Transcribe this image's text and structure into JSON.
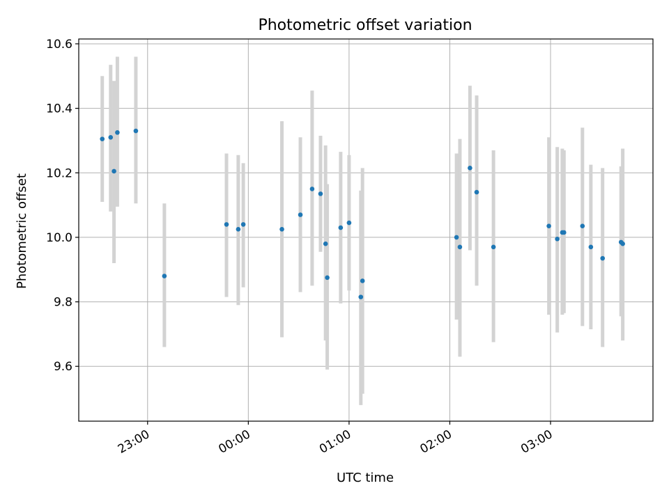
{
  "chart_data": {
    "type": "scatter",
    "title": "Photometric offset variation",
    "xlabel": "UTC time",
    "ylabel": "Photometric offset",
    "x_ticks": [
      "23:00",
      "00:00",
      "01:00",
      "02:00",
      "03:00"
    ],
    "y_ticks": [
      "9.6",
      "9.8",
      "10.0",
      "10.2",
      "10.4",
      "10.6"
    ],
    "xlim": [
      "22:19",
      "04:01"
    ],
    "ylim": [
      9.43,
      10.615
    ],
    "grid": true,
    "colors": {
      "marker": "#1f77b4",
      "errorbar": "#d3d3d3"
    },
    "series": [
      {
        "points": [
          {
            "x": "22:33",
            "y": 10.305,
            "ylo": 10.11,
            "yhi": 10.5
          },
          {
            "x": "22:38",
            "y": 10.31,
            "ylo": 10.08,
            "yhi": 10.535
          },
          {
            "x": "22:40",
            "y": 10.205,
            "ylo": 9.92,
            "yhi": 10.485
          },
          {
            "x": "22:42",
            "y": 10.325,
            "ylo": 10.095,
            "yhi": 10.56
          },
          {
            "x": "22:53",
            "y": 10.33,
            "ylo": 10.105,
            "yhi": 10.56
          },
          {
            "x": "23:10",
            "y": 9.88,
            "ylo": 9.66,
            "yhi": 10.105
          },
          {
            "x": "23:47",
            "y": 10.04,
            "ylo": 9.815,
            "yhi": 10.26
          },
          {
            "x": "23:54",
            "y": 10.025,
            "ylo": 9.79,
            "yhi": 10.255
          },
          {
            "x": "23:57",
            "y": 10.04,
            "ylo": 9.845,
            "yhi": 10.23
          },
          {
            "x": "00:20",
            "y": 10.025,
            "ylo": 9.69,
            "yhi": 10.36
          },
          {
            "x": "00:31",
            "y": 10.07,
            "ylo": 9.83,
            "yhi": 10.31
          },
          {
            "x": "00:38",
            "y": 10.15,
            "ylo": 9.85,
            "yhi": 10.455
          },
          {
            "x": "00:43",
            "y": 10.135,
            "ylo": 9.955,
            "yhi": 10.315
          },
          {
            "x": "00:46",
            "y": 9.98,
            "ylo": 9.68,
            "yhi": 10.285
          },
          {
            "x": "00:47",
            "y": 9.875,
            "ylo": 9.59,
            "yhi": 10.165
          },
          {
            "x": "00:55",
            "y": 10.03,
            "ylo": 9.795,
            "yhi": 10.265
          },
          {
            "x": "01:00",
            "y": 10.045,
            "ylo": 9.835,
            "yhi": 10.255
          },
          {
            "x": "01:07",
            "y": 9.815,
            "ylo": 9.48,
            "yhi": 10.145
          },
          {
            "x": "01:08",
            "y": 9.865,
            "ylo": 9.515,
            "yhi": 10.215
          },
          {
            "x": "02:04",
            "y": 10.0,
            "ylo": 9.745,
            "yhi": 10.26
          },
          {
            "x": "02:06",
            "y": 9.97,
            "ylo": 9.63,
            "yhi": 10.305
          },
          {
            "x": "02:12",
            "y": 10.215,
            "ylo": 9.96,
            "yhi": 10.47
          },
          {
            "x": "02:16",
            "y": 10.14,
            "ylo": 9.85,
            "yhi": 10.44
          },
          {
            "x": "02:26",
            "y": 9.97,
            "ylo": 9.675,
            "yhi": 10.27
          },
          {
            "x": "02:59",
            "y": 10.035,
            "ylo": 9.76,
            "yhi": 10.31
          },
          {
            "x": "03:04",
            "y": 9.995,
            "ylo": 9.705,
            "yhi": 10.28
          },
          {
            "x": "03:07",
            "y": 10.015,
            "ylo": 9.76,
            "yhi": 10.275
          },
          {
            "x": "03:08",
            "y": 10.015,
            "ylo": 9.765,
            "yhi": 10.27
          },
          {
            "x": "03:19",
            "y": 10.035,
            "ylo": 9.725,
            "yhi": 10.34
          },
          {
            "x": "03:24",
            "y": 9.97,
            "ylo": 9.715,
            "yhi": 10.225
          },
          {
            "x": "03:31",
            "y": 9.935,
            "ylo": 9.66,
            "yhi": 10.215
          },
          {
            "x": "03:42",
            "y": 9.985,
            "ylo": 9.755,
            "yhi": 10.22
          },
          {
            "x": "03:43",
            "y": 9.98,
            "ylo": 9.68,
            "yhi": 10.275
          }
        ]
      }
    ]
  }
}
